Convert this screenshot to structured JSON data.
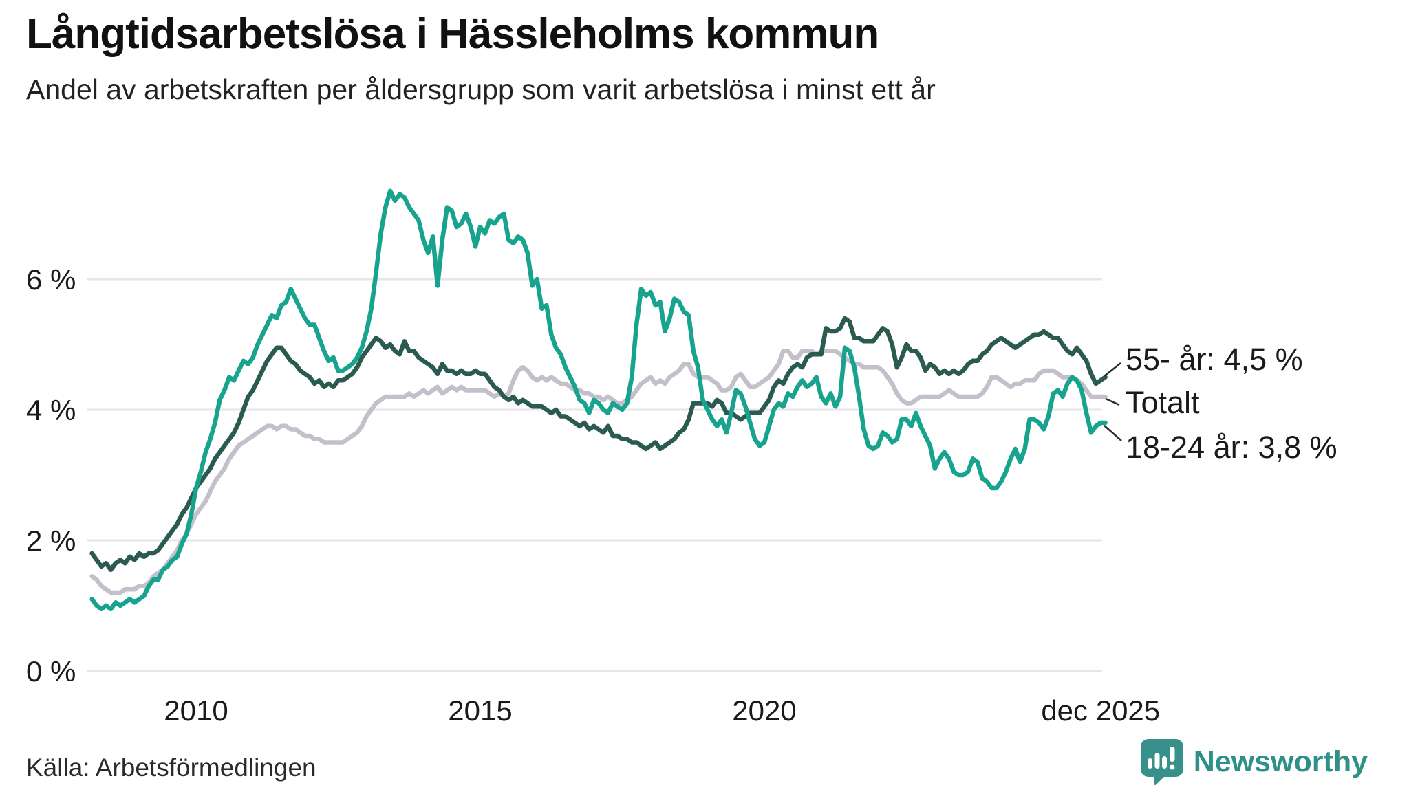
{
  "header": {
    "title": "Långtidsarbetslösa i Hässleholms kommun",
    "subtitle": "Andel av arbetskraften per åldersgrupp som varit arbetslösa i minst ett år"
  },
  "footer": {
    "source": "Källa: Arbetsförmedlingen",
    "logo_text": "Newsworthy"
  },
  "colors": {
    "teal_series": "#18a38e",
    "dark_series": "#2b5a50",
    "gray_series": "#c3c0cb",
    "gridline": "#e6e5e9",
    "axis_text": "#1a1a1a",
    "annotation_text": "#1a1a1a",
    "connector": "#2a2a2a",
    "logo_teal": "#37918a",
    "logo_text_color": "#2e9087"
  },
  "chart_data": {
    "type": "line",
    "title": "Långtidsarbetslösa i Hässleholms kommun",
    "xlabel": "",
    "ylabel": "",
    "unit": "%",
    "grid": true,
    "legend_position": "right-edge-annotations",
    "ylim": [
      0,
      7.8
    ],
    "x_start": {
      "year": 2008,
      "month": 2
    },
    "x_end": {
      "year": 2025,
      "month": 12
    },
    "y_ticks": [
      {
        "value": 0,
        "label": "0 %"
      },
      {
        "value": 2,
        "label": "2 %"
      },
      {
        "value": 4,
        "label": "4 %"
      },
      {
        "value": 6,
        "label": "6 %"
      }
    ],
    "x_ticks": [
      {
        "t": 2010,
        "label": "2010"
      },
      {
        "t": 2015,
        "label": "2015"
      },
      {
        "t": 2020,
        "label": "2020"
      },
      {
        "t": 2025.917,
        "label": "dec 2025"
      }
    ],
    "series": [
      {
        "id": "total",
        "name": "Totalt",
        "annotation": "Totalt",
        "last_value": 4.2,
        "color": "#c3c0cb",
        "values": [
          1.45,
          1.4,
          1.3,
          1.25,
          1.2,
          1.2,
          1.2,
          1.25,
          1.25,
          1.25,
          1.3,
          1.3,
          1.35,
          1.45,
          1.5,
          1.55,
          1.65,
          1.75,
          1.85,
          2.0,
          2.1,
          2.25,
          2.4,
          2.5,
          2.6,
          2.75,
          2.9,
          3.0,
          3.1,
          3.25,
          3.35,
          3.45,
          3.5,
          3.55,
          3.6,
          3.65,
          3.7,
          3.75,
          3.75,
          3.7,
          3.75,
          3.75,
          3.7,
          3.7,
          3.65,
          3.6,
          3.6,
          3.55,
          3.55,
          3.5,
          3.5,
          3.5,
          3.5,
          3.5,
          3.55,
          3.6,
          3.65,
          3.75,
          3.9,
          4.0,
          4.1,
          4.15,
          4.2,
          4.2,
          4.2,
          4.2,
          4.2,
          4.25,
          4.2,
          4.25,
          4.3,
          4.25,
          4.3,
          4.35,
          4.25,
          4.3,
          4.35,
          4.3,
          4.35,
          4.3,
          4.3,
          4.3,
          4.3,
          4.3,
          4.25,
          4.2,
          4.25,
          4.2,
          4.25,
          4.45,
          4.6,
          4.65,
          4.6,
          4.5,
          4.45,
          4.5,
          4.45,
          4.5,
          4.45,
          4.4,
          4.4,
          4.35,
          4.3,
          4.3,
          4.25,
          4.25,
          4.2,
          4.2,
          4.15,
          4.2,
          4.15,
          4.1,
          4.1,
          4.15,
          4.2,
          4.3,
          4.4,
          4.45,
          4.5,
          4.4,
          4.45,
          4.4,
          4.5,
          4.55,
          4.6,
          4.7,
          4.7,
          4.55,
          4.5,
          4.5,
          4.5,
          4.45,
          4.4,
          4.3,
          4.3,
          4.35,
          4.5,
          4.55,
          4.45,
          4.35,
          4.35,
          4.4,
          4.45,
          4.5,
          4.6,
          4.7,
          4.9,
          4.9,
          4.8,
          4.8,
          4.9,
          4.9,
          4.9,
          4.85,
          4.9,
          4.9,
          4.9,
          4.9,
          4.85,
          4.8,
          4.75,
          4.7,
          4.7,
          4.65,
          4.65,
          4.65,
          4.65,
          4.6,
          4.5,
          4.4,
          4.25,
          4.15,
          4.1,
          4.1,
          4.15,
          4.2,
          4.2,
          4.2,
          4.2,
          4.2,
          4.25,
          4.3,
          4.25,
          4.2,
          4.2,
          4.2,
          4.2,
          4.2,
          4.25,
          4.35,
          4.5,
          4.5,
          4.45,
          4.4,
          4.35,
          4.4,
          4.4,
          4.45,
          4.45,
          4.45,
          4.55,
          4.6,
          4.6,
          4.6,
          4.55,
          4.5,
          4.5,
          4.5,
          4.45,
          4.4,
          4.3,
          4.2,
          4.2,
          4.2,
          4.2
        ]
      },
      {
        "id": "age55plus",
        "name": "55- år",
        "annotation": "55- år: 4,5 %",
        "last_value": 4.5,
        "color": "#2b5a50",
        "values": [
          1.8,
          1.7,
          1.6,
          1.65,
          1.55,
          1.65,
          1.7,
          1.65,
          1.75,
          1.7,
          1.8,
          1.75,
          1.8,
          1.8,
          1.85,
          1.95,
          2.05,
          2.15,
          2.25,
          2.4,
          2.5,
          2.65,
          2.8,
          2.9,
          3.0,
          3.1,
          3.25,
          3.35,
          3.45,
          3.55,
          3.65,
          3.8,
          4.0,
          4.2,
          4.3,
          4.45,
          4.6,
          4.75,
          4.85,
          4.95,
          4.95,
          4.85,
          4.75,
          4.7,
          4.6,
          4.55,
          4.5,
          4.4,
          4.45,
          4.35,
          4.4,
          4.35,
          4.45,
          4.45,
          4.5,
          4.55,
          4.65,
          4.8,
          4.9,
          5.0,
          5.1,
          5.05,
          4.95,
          5.0,
          4.9,
          4.85,
          5.05,
          4.9,
          4.9,
          4.8,
          4.75,
          4.7,
          4.65,
          4.55,
          4.7,
          4.6,
          4.6,
          4.55,
          4.6,
          4.55,
          4.55,
          4.6,
          4.55,
          4.55,
          4.45,
          4.35,
          4.3,
          4.2,
          4.15,
          4.2,
          4.1,
          4.15,
          4.1,
          4.05,
          4.05,
          4.05,
          4.0,
          3.95,
          4.0,
          3.9,
          3.9,
          3.85,
          3.8,
          3.75,
          3.8,
          3.7,
          3.75,
          3.7,
          3.65,
          3.75,
          3.6,
          3.6,
          3.55,
          3.55,
          3.5,
          3.5,
          3.45,
          3.4,
          3.45,
          3.5,
          3.4,
          3.45,
          3.5,
          3.55,
          3.65,
          3.7,
          3.85,
          4.1,
          4.1,
          4.1,
          4.1,
          4.05,
          4.15,
          4.1,
          3.95,
          3.95,
          3.9,
          3.85,
          3.9,
          3.95,
          3.95,
          3.95,
          4.05,
          4.15,
          4.35,
          4.45,
          4.4,
          4.55,
          4.65,
          4.7,
          4.65,
          4.8,
          4.85,
          4.85,
          4.85,
          5.25,
          5.2,
          5.2,
          5.25,
          5.4,
          5.35,
          5.1,
          5.1,
          5.05,
          5.05,
          5.05,
          5.15,
          5.25,
          5.2,
          5.0,
          4.65,
          4.8,
          5.0,
          4.9,
          4.9,
          4.8,
          4.6,
          4.7,
          4.65,
          4.55,
          4.6,
          4.55,
          4.6,
          4.55,
          4.6,
          4.7,
          4.75,
          4.75,
          4.85,
          4.9,
          5.0,
          5.05,
          5.1,
          5.05,
          5.0,
          4.95,
          5.0,
          5.05,
          5.1,
          5.15,
          5.15,
          5.2,
          5.15,
          5.1,
          5.1,
          5.0,
          4.9,
          4.85,
          4.95,
          4.85,
          4.75,
          4.55,
          4.4,
          4.45,
          4.5
        ]
      },
      {
        "id": "age18to24",
        "name": "18-24 år",
        "annotation": "18-24 år: 3,8 %",
        "last_value": 3.8,
        "color": "#18a38e",
        "values": [
          1.1,
          1.0,
          0.95,
          1.0,
          0.95,
          1.05,
          1.0,
          1.05,
          1.1,
          1.05,
          1.1,
          1.15,
          1.3,
          1.4,
          1.4,
          1.55,
          1.6,
          1.7,
          1.75,
          1.95,
          2.1,
          2.4,
          2.8,
          3.05,
          3.35,
          3.55,
          3.8,
          4.15,
          4.3,
          4.5,
          4.45,
          4.6,
          4.75,
          4.7,
          4.8,
          5.0,
          5.15,
          5.3,
          5.45,
          5.4,
          5.6,
          5.65,
          5.85,
          5.7,
          5.55,
          5.4,
          5.3,
          5.3,
          5.1,
          4.9,
          4.75,
          4.8,
          4.6,
          4.6,
          4.65,
          4.7,
          4.8,
          4.95,
          5.2,
          5.55,
          6.1,
          6.7,
          7.1,
          7.35,
          7.2,
          7.3,
          7.25,
          7.1,
          7.0,
          6.9,
          6.6,
          6.4,
          6.65,
          5.9,
          6.6,
          7.1,
          7.05,
          6.8,
          6.85,
          7.0,
          6.8,
          6.5,
          6.8,
          6.7,
          6.9,
          6.85,
          6.95,
          7.0,
          6.6,
          6.55,
          6.65,
          6.6,
          6.4,
          5.9,
          6.0,
          5.55,
          5.6,
          5.15,
          4.95,
          4.85,
          4.65,
          4.5,
          4.35,
          4.15,
          4.1,
          3.95,
          4.15,
          4.1,
          4.0,
          3.95,
          4.1,
          4.05,
          4.0,
          4.1,
          4.5,
          5.3,
          5.85,
          5.75,
          5.8,
          5.6,
          5.65,
          5.2,
          5.4,
          5.7,
          5.65,
          5.5,
          5.45,
          4.9,
          4.65,
          4.15,
          4.0,
          3.85,
          3.75,
          3.85,
          3.65,
          3.95,
          4.3,
          4.25,
          4.05,
          3.8,
          3.55,
          3.45,
          3.5,
          3.75,
          4.0,
          4.1,
          4.05,
          4.25,
          4.2,
          4.35,
          4.45,
          4.35,
          4.4,
          4.5,
          4.2,
          4.1,
          4.25,
          4.05,
          4.2,
          4.95,
          4.9,
          4.65,
          4.2,
          3.7,
          3.45,
          3.4,
          3.45,
          3.65,
          3.6,
          3.5,
          3.55,
          3.85,
          3.85,
          3.75,
          3.95,
          3.75,
          3.6,
          3.45,
          3.1,
          3.25,
          3.35,
          3.25,
          3.05,
          3.0,
          3.0,
          3.05,
          3.25,
          3.2,
          2.95,
          2.9,
          2.8,
          2.8,
          2.9,
          3.05,
          3.25,
          3.4,
          3.2,
          3.4,
          3.85,
          3.85,
          3.8,
          3.7,
          3.9,
          4.25,
          4.3,
          4.2,
          4.4,
          4.5,
          4.45,
          4.3,
          3.95,
          3.65,
          3.75,
          3.8,
          3.8
        ]
      }
    ]
  }
}
